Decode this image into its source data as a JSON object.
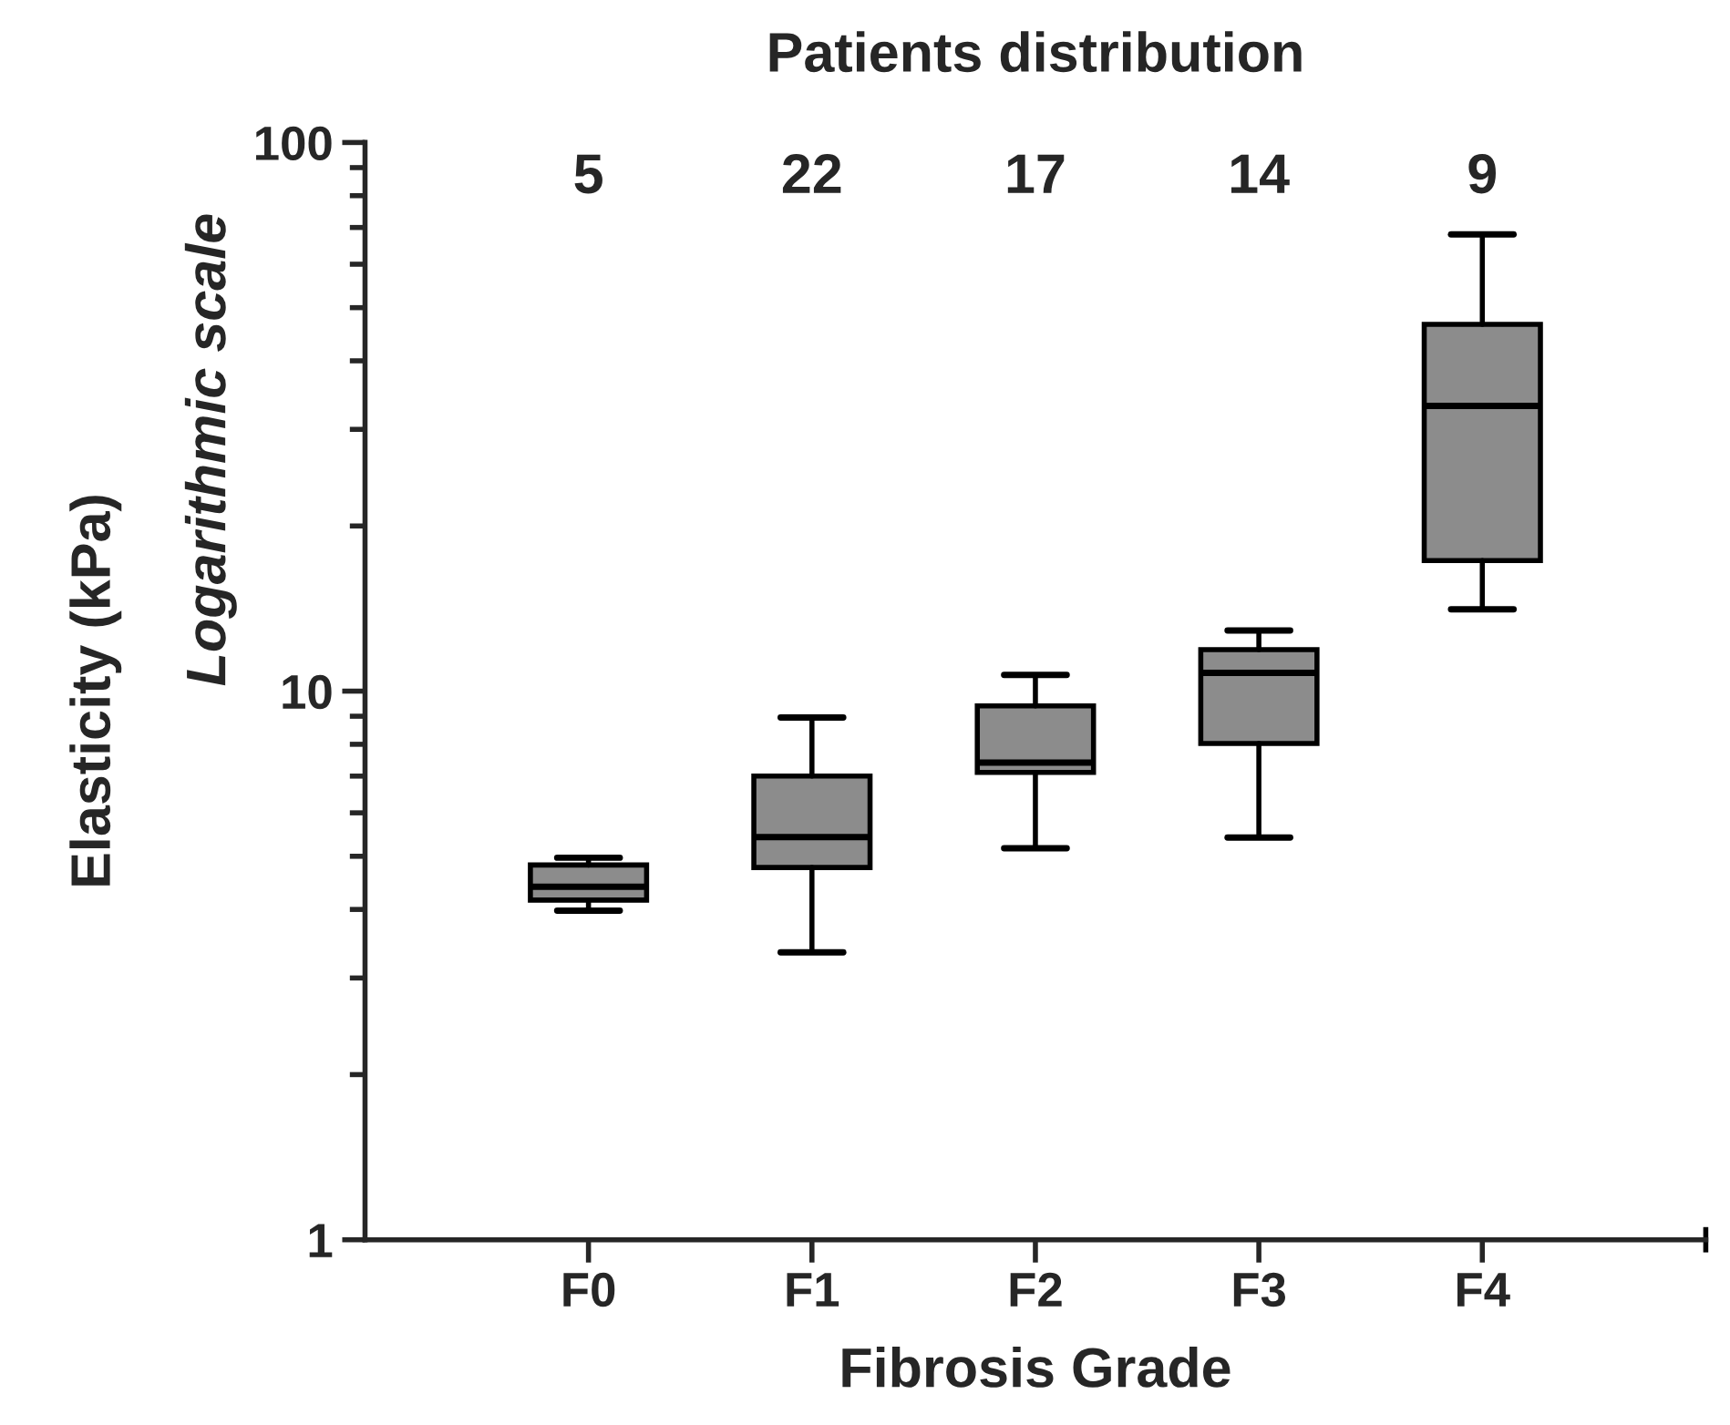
{
  "chart_data": {
    "type": "box",
    "title": "Patients distribution",
    "xlabel": "Fibrosis Grade",
    "ylabel": "Elasticity (kPa)\nLogarithmic scale",
    "categories": [
      "F0",
      "F1",
      "F2",
      "F3",
      "F4"
    ],
    "annotations": [
      "5",
      "22",
      "17",
      "14",
      "9"
    ],
    "color": "#8c8c8c",
    "boxes": [
      {
        "low": 3.98,
        "q1": 4.16,
        "median": 4.4,
        "q3": 4.82,
        "high": 4.97
      },
      {
        "low": 3.34,
        "q1": 4.77,
        "median": 5.42,
        "q3": 7.0,
        "high": 8.95
      },
      {
        "low": 5.17,
        "q1": 7.11,
        "median": 7.41,
        "q3": 9.4,
        "high": 10.7
      },
      {
        "low": 5.41,
        "q1": 8.03,
        "median": 10.8,
        "q3": 11.9,
        "high": 12.9
      },
      {
        "low": 14.1,
        "q1": 17.3,
        "median": 33.1,
        "q3": 46.6,
        "high": 68
      }
    ],
    "log": "y",
    "ylim": [
      1,
      100
    ],
    "yticks": [
      1,
      10,
      100
    ],
    "grid": false,
    "legend": false
  }
}
